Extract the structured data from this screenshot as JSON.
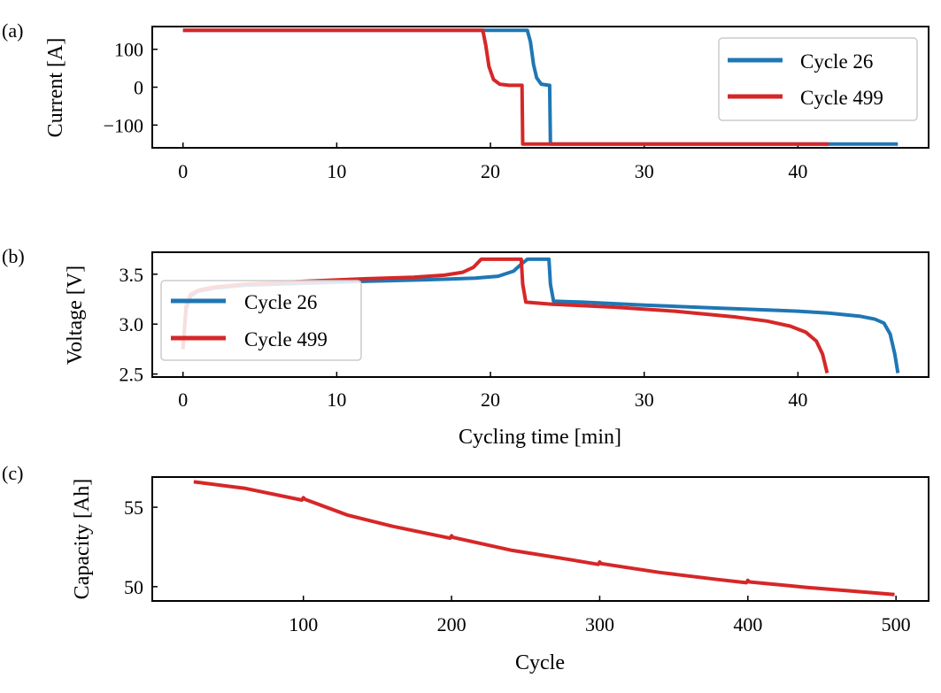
{
  "colors": {
    "cycle26": "#1f77b4",
    "cycle499": "#d62728"
  },
  "chart_data": [
    {
      "panel": "(a)",
      "type": "line",
      "ylabel": "Current [A]",
      "xlabel": "",
      "xlim": [
        -2,
        48.5
      ],
      "ylim": [
        -160,
        160
      ],
      "xticks": [
        0,
        10,
        20,
        30,
        40
      ],
      "yticks": [
        -100,
        0,
        100
      ],
      "ytick_labels": [
        "−100",
        "0",
        "100"
      ],
      "legend": {
        "position": "upper right"
      },
      "series": [
        {
          "name": "Cycle 26",
          "color_key": "cycle26",
          "x": [
            0,
            22.4,
            22.6,
            22.8,
            23.0,
            23.3,
            23.8,
            23.85,
            23.9,
            46.5
          ],
          "y": [
            150,
            150,
            120,
            60,
            25,
            8,
            5,
            5,
            -150,
            -150
          ]
        },
        {
          "name": "Cycle 499",
          "color_key": "cycle499",
          "x": [
            0,
            19.5,
            19.7,
            19.9,
            20.2,
            20.6,
            21.2,
            22.0,
            22.05,
            22.1,
            42.0
          ],
          "y": [
            150,
            150,
            110,
            55,
            20,
            8,
            5,
            5,
            5,
            -150,
            -150
          ]
        }
      ]
    },
    {
      "panel": "(b)",
      "type": "line",
      "ylabel": "Voltage [V]",
      "xlabel": "Cycling time [min]",
      "xlim": [
        -2,
        48.5
      ],
      "ylim": [
        2.47,
        3.72
      ],
      "xticks": [
        0,
        10,
        20,
        30,
        40
      ],
      "yticks": [
        2.5,
        3.0,
        3.5
      ],
      "ytick_labels": [
        "2.5",
        "3.0",
        "3.5"
      ],
      "legend": {
        "position": "center left"
      },
      "series": [
        {
          "name": "Cycle 26",
          "color_key": "cycle26",
          "x": [
            0,
            0.2,
            0.5,
            1,
            2,
            4,
            8,
            12,
            16,
            19,
            20.5,
            21.5,
            22.0,
            22.4,
            23.8,
            23.9,
            24.1,
            26,
            30,
            35,
            40,
            42,
            44,
            45,
            45.6,
            46.0,
            46.3,
            46.5
          ],
          "y": [
            2.75,
            3.15,
            3.28,
            3.33,
            3.36,
            3.39,
            3.41,
            3.43,
            3.445,
            3.46,
            3.48,
            3.53,
            3.6,
            3.65,
            3.65,
            3.4,
            3.23,
            3.22,
            3.19,
            3.16,
            3.13,
            3.11,
            3.08,
            3.05,
            3.01,
            2.9,
            2.7,
            2.51
          ]
        },
        {
          "name": "Cycle 499",
          "color_key": "cycle499",
          "x": [
            0,
            0.2,
            0.5,
            1,
            2,
            4,
            8,
            12,
            15,
            17,
            18.2,
            18.9,
            19.4,
            22.0,
            22.1,
            22.3,
            24,
            28,
            32,
            36,
            38,
            39.5,
            40.5,
            41.2,
            41.6,
            41.9
          ],
          "y": [
            2.75,
            3.18,
            3.3,
            3.34,
            3.37,
            3.4,
            3.43,
            3.455,
            3.47,
            3.49,
            3.52,
            3.57,
            3.65,
            3.65,
            3.4,
            3.22,
            3.2,
            3.17,
            3.13,
            3.07,
            3.03,
            2.98,
            2.92,
            2.83,
            2.7,
            2.51
          ]
        }
      ]
    },
    {
      "panel": "(c)",
      "type": "line",
      "ylabel": "Capacity [Ah]",
      "xlabel": "Cycle",
      "xlim": [
        -2,
        522
      ],
      "ylim": [
        49.1,
        56.9
      ],
      "xticks": [
        100,
        200,
        300,
        400,
        500
      ],
      "yticks": [
        50,
        55
      ],
      "ytick_labels": [
        "50",
        "55"
      ],
      "series": [
        {
          "name": "Capacity",
          "color_key": "cycle499",
          "x": [
            26,
            60,
            99,
            100,
            101,
            130,
            160,
            199,
            200,
            201,
            240,
            280,
            299,
            300,
            301,
            340,
            380,
            399,
            400,
            401,
            440,
            480,
            499
          ],
          "y": [
            56.6,
            56.2,
            55.45,
            55.6,
            55.5,
            54.5,
            53.8,
            53.05,
            53.2,
            53.1,
            52.3,
            51.7,
            51.4,
            51.55,
            51.45,
            50.9,
            50.45,
            50.25,
            50.4,
            50.3,
            49.95,
            49.65,
            49.5
          ]
        }
      ]
    }
  ]
}
